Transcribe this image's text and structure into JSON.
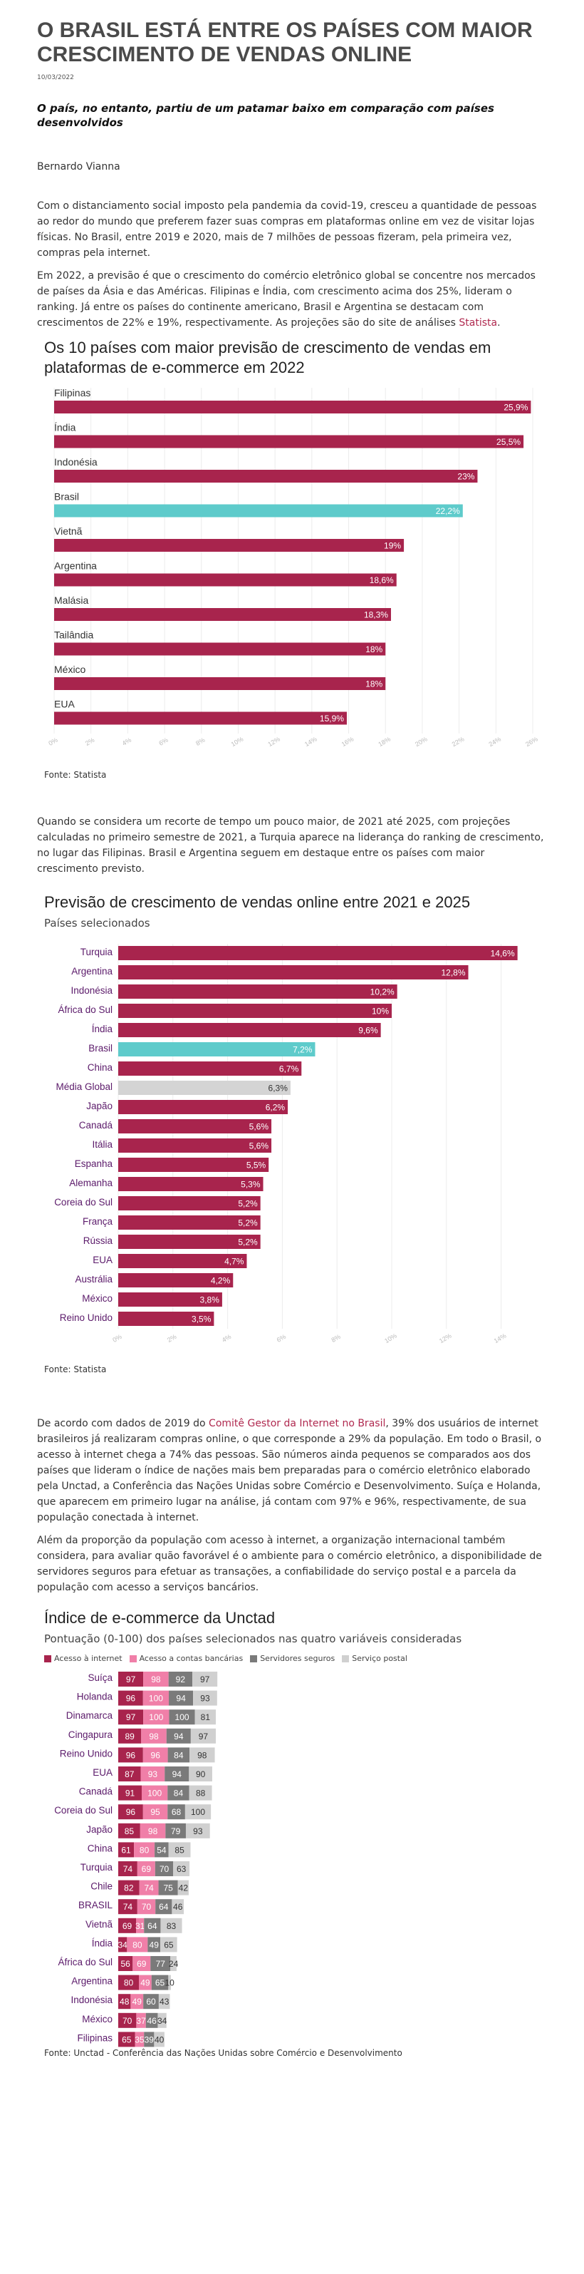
{
  "article": {
    "title": "O BRASIL ESTÁ ENTRE OS PAÍSES COM MAIOR CRESCIMENTO DE VENDAS ONLINE",
    "date": "10/03/2022",
    "subtitle": "O país, no entanto, partiu de um patamar baixo em comparação com países desenvolvidos",
    "author": "Bernardo Vianna",
    "p1": "Com o distanciamento social imposto pela pandemia da covid-19, cresceu a quantidade de pessoas ao redor do mundo que preferem fazer suas compras em plataformas online em vez de visitar lojas físicas. No Brasil, entre 2019 e 2020, mais de 7 milhões de pessoas fizeram, pela primeira vez, compras pela internet.",
    "p2_text": "Em 2022, a previsão é que o crescimento do comércio eletrônico global se concentre nos mercados de países da Ásia e das Américas. Filipinas e Índia, com crescimento acima dos 25%, lideram o ranking. Já entre os países do continente americano, Brasil e Argentina se destacam com crescimentos de 22% e 19%, respectivamente. As projeções são do site de análises",
    "p2_link": "Statista",
    "p2_end": ".",
    "p3": "Quando se considera um recorte de tempo um pouco maior, de 2021 até 2025, com projeções calculadas no primeiro semestre de 2021, a Turquia aparece na liderança do ranking de crescimento, no lugar das Filipinas. Brasil e Argentina seguem em destaque entre os países com maior crescimento previsto.",
    "p4_a": "De acordo com dados de 2019 do",
    "p4_link": "Comitê Gestor da Internet no Brasil",
    "p4_b": ", 39% dos usuários de internet brasileiros já realizaram compras online, o que corresponde a 29% da população. Em todo o Brasil, o acesso à internet chega a 74% das pessoas. São números ainda pequenos se comparados aos dos países que lideram o índice de nações mais bem preparadas para o comércio eletrônico elaborado pela Unctad, a Conferência das Nações Unidas sobre Comércio e Desenvolvimento. Suíça e Holanda, que aparecem em primeiro lugar na análise, já contam com 97% e 96%, respectivamente, de sua população conectada à internet.",
    "p5": "Além da proporção da população com acesso à internet, a organização internacional também considera, para avaliar quão favorável é o ambiente para o comércio eletrônico, a disponibilidade de servidores seguros para efetuar as transações, a confiabilidade do serviço postal e a parcela da população com acesso a serviços bancários."
  },
  "colors": {
    "bar": "#a8244d",
    "highlight": "#5ecbcb",
    "global": "#d4d4d4",
    "label_purple": "#5b1a6a",
    "internet": "#a8244d",
    "bank": "#f07fa8",
    "servers": "#7a7a7a",
    "postal": "#d0d0d0"
  },
  "chart_data": [
    {
      "type": "bar",
      "orientation": "horizontal",
      "title": "Os 10 países com maior previsão de crescimento de vendas em plataformas de e-commerce em 2022",
      "categories": [
        "Filipinas",
        "Índia",
        "Indonésia",
        "Brasil",
        "Vietnã",
        "Argentina",
        "Malásia",
        "Tailândia",
        "México",
        "EUA"
      ],
      "values": [
        25.9,
        25.5,
        23,
        22.2,
        19,
        18.6,
        18.3,
        18,
        18,
        15.9
      ],
      "value_labels": [
        "25,9%",
        "25,5%",
        "23%",
        "22,2%",
        "19%",
        "18,6%",
        "18,3%",
        "18%",
        "18%",
        "15,9%"
      ],
      "highlight": "Brasil",
      "xlim": [
        0,
        26
      ],
      "ticks": [
        0,
        2,
        4,
        6,
        8,
        10,
        12,
        14,
        16,
        18,
        20,
        22,
        24,
        26
      ],
      "tick_labels": [
        "0%",
        "2%",
        "4%",
        "6%",
        "8%",
        "10%",
        "12%",
        "14%",
        "16%",
        "18%",
        "20%",
        "22%",
        "24%",
        "26%"
      ],
      "grid": true,
      "source": "Fonte: Statista"
    },
    {
      "type": "bar",
      "orientation": "horizontal",
      "title": "Previsão de crescimento de vendas online entre 2021 e 2025",
      "subtitle": "Países selecionados",
      "categories": [
        "Turquia",
        "Argentina",
        "Indonésia",
        "África do Sul",
        "Índia",
        "Brasil",
        "China",
        "Média Global",
        "Japão",
        "Canadá",
        "Itália",
        "Espanha",
        "Alemanha",
        "Coreia do Sul",
        "França",
        "Rússia",
        "EUA",
        "Austrália",
        "México",
        "Reino Unido"
      ],
      "values": [
        14.6,
        12.8,
        10.2,
        10,
        9.6,
        7.2,
        6.7,
        6.3,
        6.2,
        5.6,
        5.6,
        5.5,
        5.3,
        5.2,
        5.2,
        5.2,
        4.7,
        4.2,
        3.8,
        3.5
      ],
      "value_labels": [
        "14,6%",
        "12,8%",
        "10,2%",
        "10%",
        "9,6%",
        "7,2%",
        "6,7%",
        "6,3%",
        "6,2%",
        "5,6%",
        "5,6%",
        "5,5%",
        "5,3%",
        "5,2%",
        "5,2%",
        "5,2%",
        "4,7%",
        "4,2%",
        "3,8%",
        "3,5%"
      ],
      "highlight": "Brasil",
      "neutral": "Média Global",
      "xlim": [
        0,
        15
      ],
      "ticks": [
        0,
        2,
        4,
        6,
        8,
        10,
        12,
        14
      ],
      "tick_labels": [
        "0%",
        "2%",
        "4%",
        "6%",
        "8%",
        "10%",
        "12%",
        "14%"
      ],
      "grid": true,
      "source": "Fonte: Statista"
    },
    {
      "type": "bar",
      "orientation": "horizontal",
      "stacked": true,
      "title": "Índice de e-commerce da Unctad",
      "subtitle": "Pontuação (0-100) dos países selecionados nas quatro variáveis consideradas",
      "legend": [
        "Acesso à internet",
        "Acesso a contas bancárias",
        "Servidores seguros",
        "Serviço postal"
      ],
      "legend_position": "top-left",
      "categories": [
        "Suíça",
        "Holanda",
        "Dinamarca",
        "Cingapura",
        "Reino Unido",
        "EUA",
        "Canadá",
        "Coreia do Sul",
        "Japão",
        "China",
        "Turquia",
        "Chile",
        "BRASIL",
        "Vietnã",
        "Índia",
        "África do Sul",
        "Argentina",
        "Indonésia",
        "México",
        "Filipinas"
      ],
      "series": [
        {
          "name": "Acesso à internet",
          "values": [
            97,
            96,
            97,
            89,
            96,
            87,
            91,
            96,
            85,
            61,
            74,
            82,
            74,
            69,
            34,
            56,
            80,
            48,
            70,
            65
          ]
        },
        {
          "name": "Acesso a contas bancárias",
          "values": [
            98,
            100,
            100,
            98,
            96,
            93,
            100,
            95,
            98,
            80,
            69,
            74,
            70,
            31,
            80,
            69,
            49,
            49,
            37,
            35
          ]
        },
        {
          "name": "Servidores seguros",
          "values": [
            92,
            94,
            100,
            94,
            84,
            94,
            84,
            68,
            79,
            54,
            70,
            75,
            64,
            64,
            49,
            77,
            65,
            60,
            46,
            39
          ]
        },
        {
          "name": "Serviço postal",
          "values": [
            97,
            93,
            81,
            97,
            98,
            90,
            88,
            100,
            93,
            85,
            63,
            42,
            46,
            83,
            65,
            24,
            10,
            43,
            34,
            40
          ]
        }
      ],
      "source": "Fonte: Unctad - Conferência das Nações Unidas sobre Comércio e Desenvolvimento"
    }
  ]
}
